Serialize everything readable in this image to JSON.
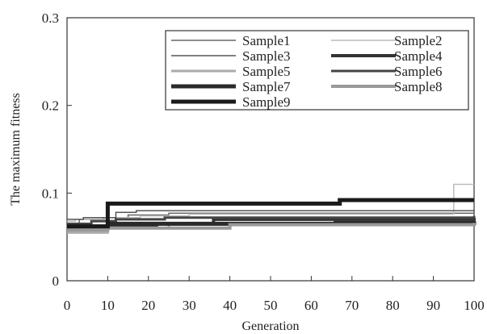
{
  "chart_data": {
    "type": "line",
    "title": "",
    "xlabel": "Generation",
    "ylabel": "The maximum fitness",
    "xlim": [
      0,
      100
    ],
    "ylim": [
      0,
      0.3
    ],
    "xticks": [
      0,
      10,
      20,
      30,
      40,
      50,
      60,
      70,
      80,
      90,
      100
    ],
    "xtick_labels": [
      "0",
      "10",
      "20",
      "30",
      "40",
      "50",
      "60",
      "70",
      "80",
      "90",
      "100"
    ],
    "yticks": [
      0,
      0.1,
      0.2,
      0.3
    ],
    "ytick_labels": [
      "0",
      "0.1",
      "0.2",
      "0.3"
    ],
    "grid": false,
    "legend_position": "top-right",
    "series": [
      {
        "name": "Sample1",
        "color": "#666666",
        "width": 1.5,
        "x": [
          0,
          3,
          9,
          15,
          25,
          100
        ],
        "y": [
          0.065,
          0.07,
          0.072,
          0.075,
          0.077,
          0.08
        ]
      },
      {
        "name": "Sample2",
        "color": "#bbbbbb",
        "width": 1.5,
        "x": [
          0,
          2,
          10,
          18,
          30,
          94,
          95,
          100
        ],
        "y": [
          0.068,
          0.07,
          0.072,
          0.074,
          0.076,
          0.076,
          0.11,
          0.11
        ]
      },
      {
        "name": "Sample3",
        "color": "#555555",
        "width": 1.5,
        "x": [
          0,
          4,
          12,
          17,
          100
        ],
        "y": [
          0.07,
          0.072,
          0.078,
          0.08,
          0.081
        ]
      },
      {
        "name": "Sample4",
        "color": "#333333",
        "width": 4,
        "x": [
          0,
          10,
          22,
          36,
          100
        ],
        "y": [
          0.06,
          0.062,
          0.065,
          0.07,
          0.072
        ]
      },
      {
        "name": "Sample5",
        "color": "#aaaaaa",
        "width": 3,
        "x": [
          0,
          10,
          25,
          100
        ],
        "y": [
          0.055,
          0.06,
          0.065,
          0.068
        ]
      },
      {
        "name": "Sample6",
        "color": "#444444",
        "width": 3,
        "x": [
          0,
          6,
          12,
          24,
          100
        ],
        "y": [
          0.065,
          0.068,
          0.07,
          0.072,
          0.074
        ]
      },
      {
        "name": "Sample7",
        "color": "#2a2a2a",
        "width": 5,
        "x": [
          0,
          10,
          66,
          100
        ],
        "y": [
          0.062,
          0.065,
          0.066,
          0.068
        ]
      },
      {
        "name": "Sample8",
        "color": "#999999",
        "width": 4,
        "x": [
          0,
          10,
          40,
          100
        ],
        "y": [
          0.058,
          0.06,
          0.064,
          0.066
        ]
      },
      {
        "name": "Sample9",
        "color": "#1a1a1a",
        "width": 5,
        "x": [
          0,
          9,
          10,
          66,
          67,
          100
        ],
        "y": [
          0.062,
          0.062,
          0.088,
          0.088,
          0.092,
          0.092
        ]
      }
    ]
  }
}
